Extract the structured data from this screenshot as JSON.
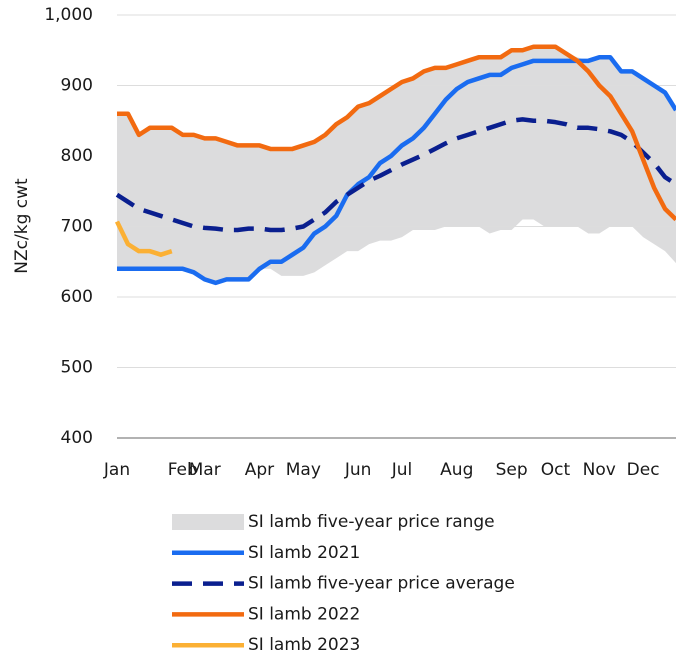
{
  "chart_data": {
    "type": "line",
    "y_label": "NZc/kg cwt",
    "categories": [
      "Jan",
      null,
      null,
      null,
      null,
      null,
      "Feb",
      null,
      "Mar",
      null,
      null,
      null,
      null,
      "Apr",
      null,
      null,
      null,
      "May",
      null,
      null,
      null,
      null,
      "Jun",
      null,
      null,
      null,
      "Jul",
      null,
      null,
      null,
      null,
      "Aug",
      null,
      null,
      null,
      null,
      "Sep",
      null,
      null,
      null,
      "Oct",
      null,
      null,
      null,
      "Nov",
      null,
      null,
      null,
      "Dec",
      null,
      null,
      null
    ],
    "ylim": [
      400,
      1000
    ],
    "yticks": [
      400,
      500,
      600,
      700,
      800,
      900,
      {
        "value": 1000,
        "label": "1,000"
      }
    ],
    "grid": true,
    "band": {
      "name": "SI lamb five-year price range",
      "color": "#dcdcdd",
      "high": [
        860,
        860,
        830,
        840,
        840,
        840,
        830,
        830,
        825,
        825,
        820,
        815,
        815,
        815,
        810,
        810,
        810,
        815,
        820,
        830,
        845,
        855,
        870,
        875,
        885,
        895,
        905,
        910,
        920,
        925,
        925,
        930,
        935,
        940,
        940,
        940,
        950,
        950,
        955,
        955,
        955,
        945,
        940,
        935,
        940,
        940,
        920,
        920,
        910,
        900,
        890,
        865
      ],
      "low": [
        640,
        640,
        640,
        640,
        640,
        640,
        640,
        635,
        625,
        620,
        625,
        625,
        625,
        640,
        640,
        630,
        630,
        630,
        635,
        645,
        655,
        665,
        665,
        675,
        680,
        680,
        685,
        695,
        695,
        695,
        700,
        700,
        700,
        700,
        690,
        695,
        695,
        710,
        710,
        700,
        700,
        700,
        700,
        690,
        690,
        700,
        700,
        700,
        685,
        675,
        665,
        648
      ]
    },
    "series": [
      {
        "name": "SI lamb 2021",
        "color": "#1a6cf0",
        "dashed": false,
        "values": [
          640,
          640,
          640,
          640,
          640,
          640,
          640,
          635,
          625,
          620,
          625,
          625,
          625,
          640,
          650,
          650,
          660,
          670,
          690,
          700,
          715,
          745,
          760,
          770,
          790,
          800,
          815,
          825,
          840,
          860,
          880,
          895,
          905,
          910,
          915,
          915,
          925,
          930,
          935,
          935,
          935,
          935,
          935,
          935,
          940,
          940,
          920,
          920,
          910,
          900,
          890,
          865
        ]
      },
      {
        "name": "SI lamb five-year price average",
        "color": "#0a1f8f",
        "dashed": true,
        "values": [
          745,
          735,
          725,
          720,
          715,
          710,
          705,
          700,
          698,
          697,
          695,
          695,
          697,
          697,
          695,
          695,
          697,
          700,
          710,
          720,
          735,
          745,
          755,
          765,
          772,
          780,
          788,
          795,
          802,
          810,
          818,
          825,
          830,
          835,
          840,
          845,
          850,
          852,
          850,
          850,
          848,
          845,
          840,
          840,
          838,
          835,
          830,
          820,
          805,
          790,
          770,
          760
        ]
      },
      {
        "name": "SI lamb 2022",
        "color": "#f26a10",
        "dashed": false,
        "values": [
          860,
          860,
          830,
          840,
          840,
          840,
          830,
          830,
          825,
          825,
          820,
          815,
          815,
          815,
          810,
          810,
          810,
          815,
          820,
          830,
          845,
          855,
          870,
          875,
          885,
          895,
          905,
          910,
          920,
          925,
          925,
          930,
          935,
          940,
          940,
          940,
          950,
          950,
          955,
          955,
          955,
          945,
          935,
          920,
          900,
          885,
          860,
          835,
          795,
          755,
          725,
          710
        ]
      },
      {
        "name": "SI lamb 2023",
        "color": "#fbb034",
        "dashed": false,
        "values": [
          707,
          675,
          665,
          665,
          660,
          665,
          null,
          null,
          null,
          null,
          null,
          null,
          null,
          null,
          null,
          null,
          null,
          null,
          null,
          null,
          null,
          null,
          null,
          null,
          null,
          null,
          null,
          null,
          null,
          null,
          null,
          null,
          null,
          null,
          null,
          null,
          null,
          null,
          null,
          null,
          null,
          null,
          null,
          null,
          null,
          null,
          null,
          null,
          null,
          null,
          null,
          null
        ]
      }
    ]
  }
}
